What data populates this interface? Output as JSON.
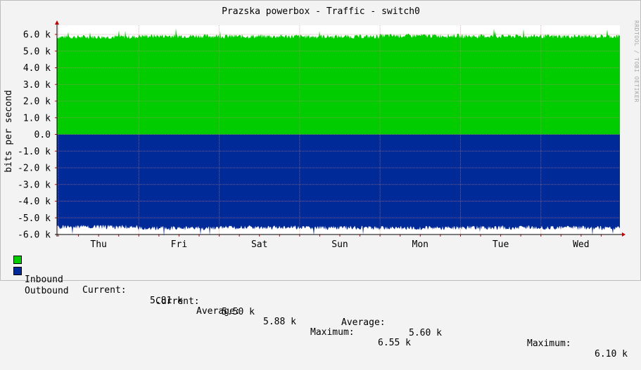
{
  "chart_data": {
    "type": "area",
    "title": "Prazska powerbox - Traffic - switch0",
    "ylabel": "bits per second",
    "watermark": "RRDTOOL / TOBI OETIKER",
    "ylim": [
      -6000,
      6000
    ],
    "yticks": [
      "6.0 k",
      "5.0 k",
      "4.0 k",
      "3.0 k",
      "2.0 k",
      "1.0 k",
      "0.0",
      "-1.0 k",
      "-2.0 k",
      "-3.0 k",
      "-4.0 k",
      "-5.0 k",
      "-6.0 k"
    ],
    "categories": [
      "Thu",
      "Fri",
      "Sat",
      "Sun",
      "Mon",
      "Tue",
      "Wed"
    ],
    "grid": true,
    "series": [
      {
        "name": "Inbound",
        "color": "#00cc00",
        "direction": "positive",
        "values": [
          5850,
          5900,
          5880,
          5870,
          5920,
          5890,
          5880
        ],
        "current": "5.81 k",
        "average": "5.88 k",
        "maximum": "6.55 k"
      },
      {
        "name": "Outbound",
        "color": "#002a97",
        "direction": "negative",
        "values": [
          5550,
          5620,
          5580,
          5600,
          5610,
          5590,
          5600
        ],
        "current": "5.50 k",
        "average": "5.60 k",
        "maximum": "6.10 k"
      }
    ]
  },
  "legend": {
    "current_label": "Current:",
    "average_label": "Average:",
    "maximum_label": "Maximum:"
  }
}
